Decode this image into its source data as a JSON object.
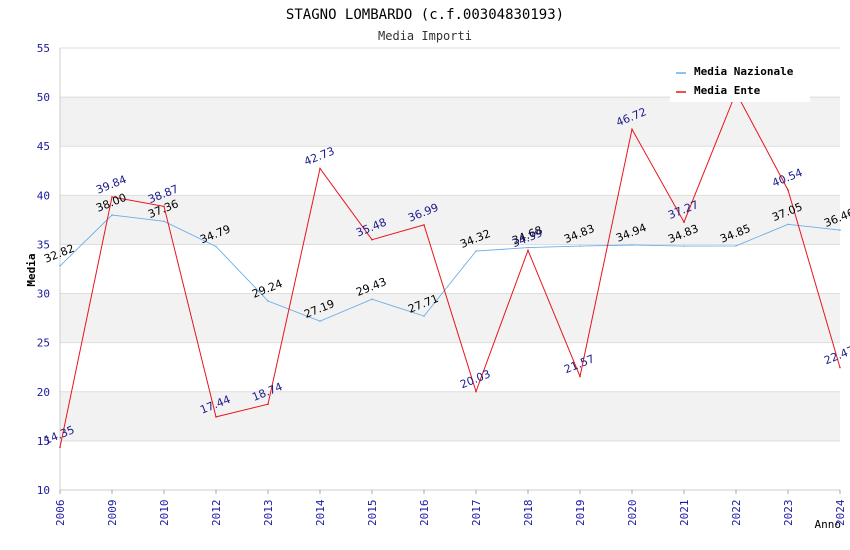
{
  "chart_data": {
    "type": "line",
    "title": "STAGNO LOMBARDO (c.f.00304830193)",
    "subtitle": "Media Importi",
    "xlabel": "Anno",
    "ylabel": "Media",
    "ylim": [
      10,
      55
    ],
    "y_ticks": [
      "10",
      "15",
      "20",
      "25",
      "30",
      "35",
      "40",
      "45",
      "50",
      "55"
    ],
    "categories": [
      "2006",
      "2009",
      "2010",
      "2012",
      "2013",
      "2014",
      "2015",
      "2016",
      "2017",
      "2018",
      "2019",
      "2020",
      "2021",
      "2022",
      "2023",
      "2024"
    ],
    "series": [
      {
        "name": "Media Nazionale",
        "color": "#6aaee8",
        "label_color": "#000000",
        "values": [
          32.82,
          38.0,
          37.36,
          34.79,
          29.24,
          27.19,
          29.43,
          27.71,
          34.32,
          34.68,
          34.83,
          34.94,
          34.83,
          34.85,
          37.05,
          36.46
        ],
        "labels": [
          "32.82",
          "38.00",
          "37.36",
          "34.79",
          "29.24",
          "27.19",
          "29.43",
          "27.71",
          "34.32",
          "34.68",
          "34.83",
          "34.94",
          "34.83",
          "34.85",
          "37.05",
          "36.46"
        ]
      },
      {
        "name": "Media Ente",
        "color": "#e8141c",
        "label_color": "#1a1a8c",
        "values": [
          14.35,
          39.84,
          38.87,
          17.44,
          18.74,
          42.73,
          35.48,
          36.99,
          20.03,
          34.39,
          21.57,
          46.72,
          37.27,
          50.47,
          40.54,
          22.47
        ],
        "labels": [
          "14.35",
          "39.84",
          "38.87",
          "17.44",
          "18.74",
          "42.73",
          "35.48",
          "36.99",
          "20.03",
          "34.39",
          "21.57",
          "46.72",
          "37.27",
          "",
          "40.54",
          "22.47"
        ]
      }
    ],
    "legend": {
      "position": "top-right"
    },
    "grid": true
  }
}
